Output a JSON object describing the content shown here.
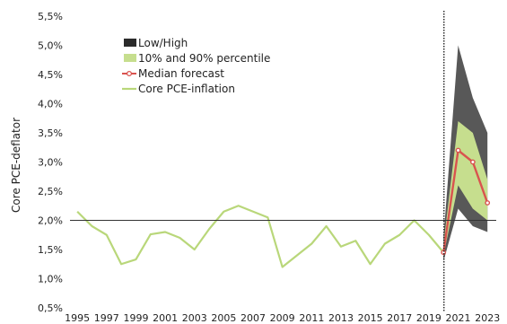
{
  "chart_data": {
    "type": "line",
    "ylabel": "Core PCE-deflator",
    "xlabel": "",
    "ylim": [
      0.5,
      5.5
    ],
    "y_ticks": [
      "5,5%",
      "5,0%",
      "4,5%",
      "4,0%",
      "3,5%",
      "3,0%",
      "2,5%",
      "2,0%",
      "1,5%",
      "1,0%",
      "0,5%"
    ],
    "y_tick_values": [
      5.5,
      5.0,
      4.5,
      4.0,
      3.5,
      3.0,
      2.5,
      2.0,
      1.5,
      1.0,
      0.5
    ],
    "x_ticks": [
      "1995",
      "1997",
      "1999",
      "2001",
      "2003",
      "2005",
      "2007",
      "2009",
      "2011",
      "2013",
      "2015",
      "2017",
      "2019",
      "2021",
      "2023"
    ],
    "x_tick_values": [
      1995,
      1997,
      1999,
      2001,
      2003,
      2005,
      2007,
      2009,
      2011,
      2013,
      2015,
      2017,
      2019,
      2021,
      2023
    ],
    "xlim": [
      1994.5,
      2023.6
    ],
    "reference_line": 2.0,
    "forecast_start": 2020,
    "legend": [
      {
        "name": "Low/High",
        "style": "fill",
        "color": "#2b2b2b"
      },
      {
        "name": "10% and 90% percentile",
        "style": "fill",
        "color": "#c6de8e"
      },
      {
        "name": "Median forecast",
        "style": "line-marker",
        "color": "#d9534f"
      },
      {
        "name": "Core PCE-inflation",
        "style": "line",
        "color": "#b9d77a"
      }
    ],
    "series": [
      {
        "name": "Core PCE-inflation",
        "color": "#b9d77a",
        "x": [
          1995,
          1996,
          1997,
          1998,
          1999,
          2000,
          2001,
          2002,
          2003,
          2004,
          2005,
          2006,
          2007,
          2008,
          2009,
          2010,
          2011,
          2012,
          2013,
          2014,
          2015,
          2016,
          2017,
          2018,
          2019,
          2020
        ],
        "values": [
          2.15,
          1.9,
          1.75,
          1.25,
          1.33,
          1.76,
          1.8,
          1.7,
          1.5,
          1.85,
          2.15,
          2.25,
          2.15,
          2.05,
          1.2,
          1.4,
          1.6,
          1.9,
          1.55,
          1.65,
          1.25,
          1.6,
          1.75,
          2.0,
          1.75,
          1.45
        ]
      },
      {
        "name": "Median forecast",
        "color": "#d9534f",
        "x": [
          2020,
          2021,
          2022,
          2023
        ],
        "values": [
          1.45,
          3.2,
          3.0,
          2.3
        ]
      }
    ],
    "bands": {
      "low_high": {
        "x": [
          2020,
          2021,
          2022,
          2023
        ],
        "low": [
          1.3,
          2.2,
          1.9,
          1.8
        ],
        "high": [
          1.7,
          5.0,
          4.1,
          3.5
        ]
      },
      "p10_p90": {
        "x": [
          2020,
          2021,
          2022,
          2023
        ],
        "low": [
          1.4,
          2.6,
          2.2,
          2.0
        ],
        "high": [
          1.6,
          3.7,
          3.5,
          2.7
        ]
      }
    }
  }
}
